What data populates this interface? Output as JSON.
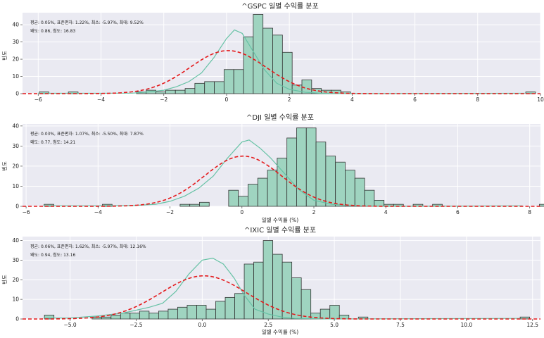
{
  "chart_data": [
    {
      "type": "bar",
      "title": "^GSPC 일별 수익률 분포",
      "xlabel": "",
      "ylabel": "빈도",
      "stats_line1": "평균: 0.05%, 표준편차: 1.22%, 최소: -5.97%, 최대: 9.52%",
      "stats_line2": "왜도: 0.86, 첨도: 16.83",
      "xlim": [
        -6.5,
        10
      ],
      "ylim": [
        0,
        47
      ],
      "xticks": [
        -6,
        -4,
        -2,
        0,
        2,
        4,
        6,
        8,
        10
      ],
      "xtick_labels": [
        "−6",
        "−4",
        "−2",
        "0",
        "2",
        "4",
        "6",
        "8",
        "10"
      ],
      "yticks": [
        0,
        10,
        20,
        30,
        40
      ],
      "ytick_labels": [
        "0",
        "10",
        "20",
        "30",
        "40"
      ],
      "grid": true,
      "bin_start": -5.97,
      "bin_width": 0.31,
      "values": [
        1,
        0,
        0,
        1,
        0,
        0,
        0,
        0,
        0,
        0,
        1,
        2,
        1,
        2,
        2,
        3,
        6,
        7,
        7,
        14,
        14,
        33,
        46,
        38,
        34,
        24,
        5,
        8,
        3,
        2,
        2,
        1,
        0,
        0,
        0,
        0,
        0,
        0,
        0,
        0,
        0,
        0,
        0,
        0,
        0,
        0,
        0,
        0,
        0,
        0,
        1
      ],
      "normal": {
        "mean": 0.05,
        "std": 1.22,
        "peak": 25
      },
      "kde": [
        [
          -6.0,
          0.2
        ],
        [
          -4.8,
          0.2
        ],
        [
          -3.0,
          0.3
        ],
        [
          -2.5,
          1
        ],
        [
          -2.0,
          2
        ],
        [
          -1.6,
          4
        ],
        [
          -1.2,
          7
        ],
        [
          -0.8,
          12
        ],
        [
          -0.4,
          21
        ],
        [
          0,
          32
        ],
        [
          0.25,
          37
        ],
        [
          0.5,
          35
        ],
        [
          0.8,
          26
        ],
        [
          1.2,
          14
        ],
        [
          1.6,
          6
        ],
        [
          2.0,
          2.5
        ],
        [
          2.5,
          0.8
        ],
        [
          3.0,
          0.2
        ],
        [
          4.0,
          0
        ],
        [
          9.5,
          0.2
        ]
      ]
    },
    {
      "type": "bar",
      "title": "^DJI 일별 수익률 분포",
      "xlabel": "일별 수익률 (%)",
      "ylabel": "빈도",
      "stats_line1": "평균: 0.03%, 표준편차: 1.07%, 최소: -5.50%, 최대: 7.87%",
      "stats_line2": "왜도: 0.77, 첨도: 14.21",
      "xlim": [
        -6.1,
        8.3
      ],
      "ylim": [
        0,
        41
      ],
      "xticks": [
        -6,
        -4,
        -2,
        0,
        2,
        4,
        6,
        8
      ],
      "xtick_labels": [
        "−6",
        "−4",
        "−2",
        "0",
        "2",
        "4",
        "6",
        "8"
      ],
      "yticks": [
        0,
        10,
        20,
        30,
        40
      ],
      "ytick_labels": [
        "0",
        "10",
        "20",
        "30",
        "40"
      ],
      "grid": true,
      "bin_start": -5.5,
      "bin_width": 0.27,
      "values": [
        1,
        0,
        0,
        0,
        0,
        0,
        1,
        0,
        0,
        0,
        0,
        0,
        0,
        0,
        1,
        1,
        2,
        0,
        0,
        8,
        5,
        11,
        14,
        18,
        24,
        34,
        39,
        39,
        32,
        25,
        22,
        18,
        14,
        8,
        3,
        1,
        1,
        0,
        1,
        0,
        1,
        0,
        0,
        0,
        0,
        0,
        0,
        0,
        0,
        0,
        0,
        1
      ],
      "normal": {
        "mean": 0.03,
        "std": 1.07,
        "peak": 25
      },
      "kde": [
        [
          -5.5,
          0.2
        ],
        [
          -4.0,
          0.2
        ],
        [
          -3.0,
          0.4
        ],
        [
          -2.4,
          1
        ],
        [
          -2.0,
          2.5
        ],
        [
          -1.6,
          5
        ],
        [
          -1.2,
          9
        ],
        [
          -0.8,
          15
        ],
        [
          -0.4,
          24
        ],
        [
          0,
          32
        ],
        [
          0.2,
          33
        ],
        [
          0.5,
          29
        ],
        [
          0.8,
          24
        ],
        [
          1.2,
          16
        ],
        [
          1.6,
          8
        ],
        [
          2.0,
          3
        ],
        [
          2.5,
          1
        ],
        [
          3.0,
          0.3
        ],
        [
          4.0,
          0
        ],
        [
          7.8,
          0.2
        ]
      ]
    },
    {
      "type": "bar",
      "title": "^IXIC 일별 수익률 분포",
      "xlabel": "일별 수익률 (%)",
      "ylabel": "빈도",
      "stats_line1": "평균: 0.06%, 표준편차: 1.62%, 최소: -5.97%, 최대: 12.16%",
      "stats_line2": "왜도: 0.94, 첨도: 13.16",
      "xlim": [
        -6.8,
        12.8
      ],
      "ylim": [
        0,
        42
      ],
      "xticks": [
        -5,
        -2.5,
        0,
        2.5,
        5,
        7.5,
        10,
        12.5
      ],
      "xtick_labels": [
        "−5.0",
        "−2.5",
        "0.0",
        "2.5",
        "5.0",
        "7.5",
        "10.0",
        "12.5"
      ],
      "yticks": [
        0,
        10,
        20,
        30,
        40
      ],
      "ytick_labels": [
        "0",
        "10",
        "20",
        "30",
        "40"
      ],
      "grid": true,
      "bin_start": -5.97,
      "bin_width": 0.36,
      "values": [
        2,
        0,
        0,
        0,
        0,
        1,
        1,
        2,
        3,
        3,
        4,
        3,
        4,
        5,
        6,
        7,
        7,
        5,
        9,
        11,
        13,
        28,
        29,
        40,
        33,
        29,
        21,
        15,
        3,
        5,
        7,
        2,
        0,
        1,
        0,
        0,
        0,
        0,
        0,
        0,
        0,
        0,
        0,
        0,
        0,
        0,
        0,
        0,
        0,
        0,
        1
      ],
      "normal": {
        "mean": 0.06,
        "std": 1.62,
        "peak": 22
      },
      "kde": [
        [
          -6.0,
          0.5
        ],
        [
          -5.0,
          0.5
        ],
        [
          -4.0,
          1.5
        ],
        [
          -3.0,
          3
        ],
        [
          -2.5,
          4.5
        ],
        [
          -2.0,
          6
        ],
        [
          -1.5,
          8
        ],
        [
          -1.0,
          14
        ],
        [
          -0.5,
          23
        ],
        [
          0,
          30
        ],
        [
          0.4,
          31
        ],
        [
          0.8,
          28
        ],
        [
          1.2,
          21
        ],
        [
          1.6,
          12
        ],
        [
          2.0,
          5
        ],
        [
          2.5,
          2.5
        ],
        [
          3.0,
          1
        ],
        [
          3.5,
          0.3
        ],
        [
          5,
          0
        ],
        [
          12,
          0.3
        ]
      ]
    }
  ]
}
